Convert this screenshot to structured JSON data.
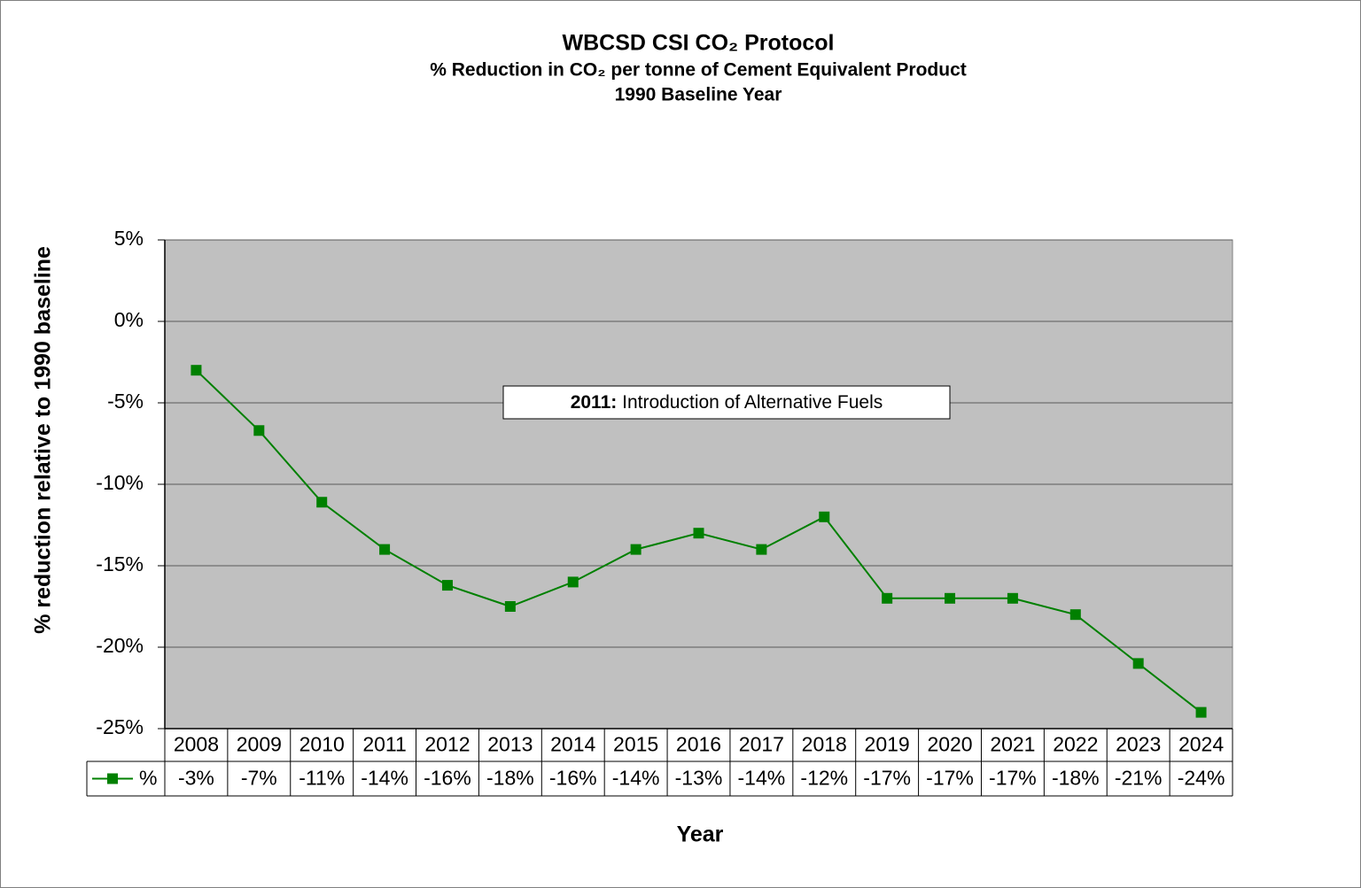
{
  "chart_data": {
    "type": "line",
    "title": "WBCSD CSI CO₂ Protocol",
    "subtitle": "% Reduction in CO₂ per tonne of Cement Equivalent Product",
    "subtitle2": "1990 Baseline Year",
    "x_label": "Year",
    "y_label": "% reduction relative to 1990 baseline",
    "annotation": {
      "label": "2011:",
      "text": "Introduction of Alternative Fuels"
    },
    "categories": [
      "2008",
      "2009",
      "2010",
      "2011",
      "2012",
      "2013",
      "2014",
      "2015",
      "2016",
      "2017",
      "2018",
      "2019",
      "2020",
      "2021",
      "2022",
      "2023",
      "2024"
    ],
    "series": [
      {
        "name": "%",
        "color": "#008000",
        "values": [
          -3,
          -6.7,
          -11.1,
          -14,
          -16.2,
          -17.5,
          -16,
          -14,
          -13,
          -14,
          -12,
          -17,
          -17,
          -17,
          -18,
          -21,
          -24
        ],
        "value_labels": [
          "-3%",
          "-7%",
          "-11%",
          "-14%",
          "-16%",
          "-18%",
          "-16%",
          "-14%",
          "-13%",
          "-14%",
          "-12%",
          "-17%",
          "-17%",
          "-17%",
          "-18%",
          "-21%",
          "-24%"
        ]
      }
    ],
    "ylim": [
      -25,
      5
    ],
    "yticks": [
      {
        "value": -25,
        "label": "-25%"
      },
      {
        "value": -20,
        "label": "-20%"
      },
      {
        "value": -15,
        "label": "-15%"
      },
      {
        "value": -10,
        "label": "-10%"
      },
      {
        "value": -5,
        "label": "-5%"
      },
      {
        "value": 0,
        "label": "0%"
      },
      {
        "value": 5,
        "label": "5%"
      }
    ],
    "grid": true
  }
}
